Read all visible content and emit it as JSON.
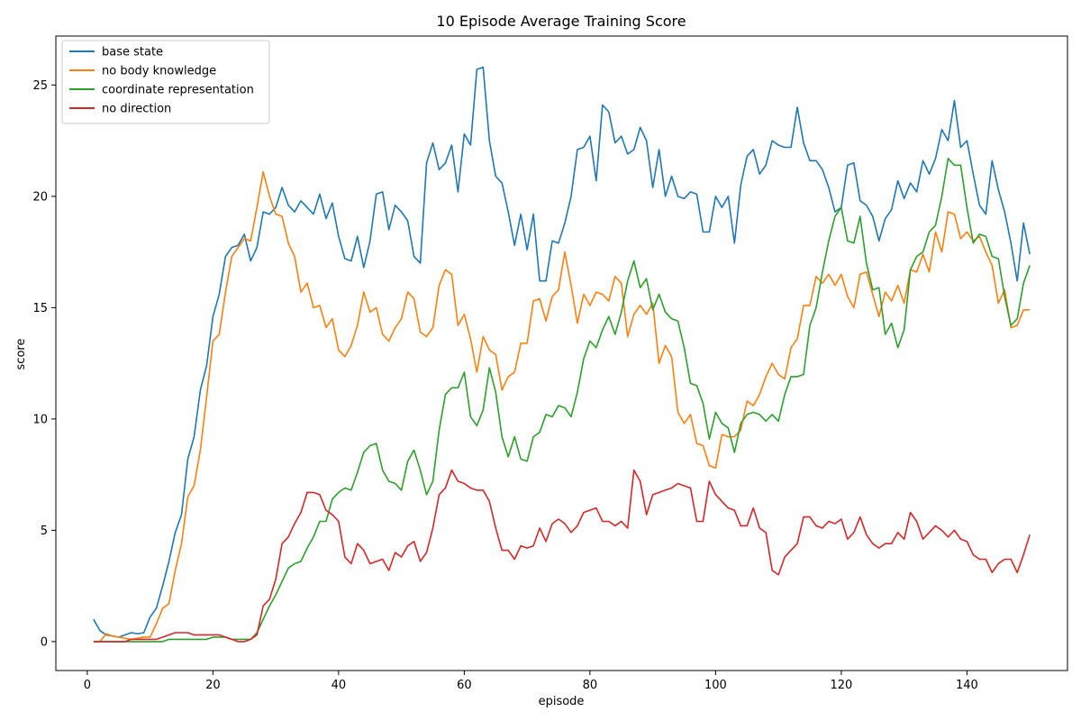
{
  "chart_data": {
    "type": "line",
    "title": "10 Episode Average Training Score",
    "xlabel": "episode",
    "ylabel": "score",
    "xlim": [
      -5,
      156
    ],
    "ylim": [
      -1.3,
      27.2
    ],
    "xticks": [
      0,
      20,
      40,
      60,
      80,
      100,
      120,
      140
    ],
    "yticks": [
      0,
      5,
      10,
      15,
      20,
      25
    ],
    "grid": false,
    "legend_position": "top-left",
    "x_start": 1,
    "x_step": 1,
    "series": [
      {
        "name": "base state",
        "color": "#1f77b4",
        "values": [
          1.0,
          0.5,
          0.3,
          0.25,
          0.2,
          0.3,
          0.4,
          0.35,
          0.4,
          1.1,
          1.5,
          2.5,
          3.6,
          4.9,
          5.7,
          8.2,
          9.2,
          11.3,
          12.4,
          14.6,
          15.6,
          17.3,
          17.7,
          17.8,
          18.3,
          17.1,
          17.7,
          19.3,
          19.2,
          19.5,
          20.4,
          19.6,
          19.3,
          19.8,
          19.5,
          19.2,
          20.1,
          19.0,
          19.7,
          18.2,
          17.2,
          17.1,
          18.2,
          16.8,
          18.0,
          20.1,
          20.2,
          18.5,
          19.6,
          19.3,
          18.9,
          17.3,
          17.0,
          21.5,
          22.4,
          21.2,
          21.5,
          22.3,
          20.2,
          22.8,
          22.3,
          25.7,
          25.8,
          22.5,
          20.9,
          20.6,
          19.3,
          17.8,
          19.2,
          17.6,
          19.2,
          16.2,
          16.2,
          18.0,
          17.9,
          18.8,
          20.0,
          22.1,
          22.2,
          22.7,
          20.7,
          24.1,
          23.8,
          22.4,
          22.7,
          21.9,
          22.1,
          23.1,
          22.5,
          20.4,
          22.1,
          20.0,
          20.9,
          20.0,
          19.9,
          20.2,
          20.1,
          18.4,
          18.4,
          20.0,
          19.5,
          20.0,
          17.9,
          20.5,
          21.8,
          22.1,
          21.0,
          21.4,
          22.5,
          22.3,
          22.2,
          22.2,
          24.0,
          22.4,
          21.6,
          21.6,
          21.2,
          20.4,
          19.3,
          19.5,
          21.4,
          21.5,
          19.8,
          19.6,
          19.1,
          18.0,
          19.0,
          19.4,
          20.7,
          19.9,
          20.6,
          20.2,
          21.6,
          21.0,
          21.7,
          23.0,
          22.5,
          24.3,
          22.2,
          22.5,
          21.0,
          19.6,
          19.2,
          21.6,
          20.3,
          19.3,
          17.9,
          16.2,
          18.8,
          17.4
        ]
      },
      {
        "name": "no body knowledge",
        "color": "#ff7f0e",
        "values": [
          0.0,
          0.0,
          0.35,
          0.25,
          0.2,
          0.15,
          0.1,
          0.15,
          0.2,
          0.2,
          0.8,
          1.5,
          1.7,
          3.2,
          4.4,
          6.5,
          7.0,
          8.6,
          11.0,
          13.5,
          13.8,
          15.7,
          17.3,
          17.7,
          18.1,
          18.0,
          19.5,
          21.1,
          20.0,
          19.2,
          19.1,
          17.9,
          17.3,
          15.7,
          16.1,
          15.0,
          15.1,
          14.1,
          14.5,
          13.1,
          12.8,
          13.3,
          14.2,
          15.7,
          14.8,
          15.0,
          13.8,
          13.5,
          14.1,
          14.5,
          15.7,
          15.4,
          13.9,
          13.7,
          14.1,
          16.0,
          16.7,
          16.5,
          14.2,
          14.7,
          13.6,
          12.1,
          13.7,
          13.1,
          12.9,
          11.3,
          11.9,
          12.1,
          13.4,
          13.4,
          15.3,
          15.4,
          14.4,
          15.5,
          15.8,
          17.5,
          16.0,
          14.3,
          15.6,
          15.1,
          15.7,
          15.6,
          15.3,
          16.4,
          16.1,
          13.7,
          14.7,
          15.1,
          14.7,
          15.2,
          12.5,
          13.3,
          12.8,
          10.3,
          9.8,
          10.2,
          8.9,
          8.8,
          7.9,
          7.8,
          9.3,
          9.2,
          9.2,
          9.5,
          10.8,
          10.6,
          11.1,
          11.9,
          12.5,
          12.0,
          11.8,
          13.2,
          13.6,
          15.1,
          15.1,
          16.4,
          16.1,
          16.5,
          16.0,
          16.5,
          15.5,
          15.0,
          16.5,
          16.6,
          15.6,
          14.6,
          15.7,
          15.3,
          16.0,
          15.2,
          16.7,
          16.6,
          17.4,
          16.6,
          18.4,
          17.5,
          19.3,
          19.2,
          18.1,
          18.4,
          18.0,
          18.2,
          17.5,
          16.9,
          15.2,
          15.8,
          14.1,
          14.2,
          14.9,
          14.9
        ]
      },
      {
        "name": "coordinate representation",
        "color": "#2ca02c",
        "values": [
          0.0,
          0.0,
          0.0,
          0.0,
          0.0,
          0.0,
          0.0,
          0.0,
          0.0,
          0.0,
          0.0,
          0.0,
          0.1,
          0.1,
          0.1,
          0.1,
          0.1,
          0.1,
          0.1,
          0.2,
          0.2,
          0.2,
          0.1,
          0.1,
          0.1,
          0.1,
          0.4,
          1.0,
          1.6,
          2.1,
          2.7,
          3.3,
          3.5,
          3.6,
          4.2,
          4.7,
          5.4,
          5.4,
          6.4,
          6.7,
          6.9,
          6.8,
          7.6,
          8.5,
          8.8,
          8.9,
          7.7,
          7.2,
          7.1,
          6.8,
          8.1,
          8.6,
          7.7,
          6.6,
          7.2,
          9.5,
          11.1,
          11.4,
          11.4,
          12.1,
          10.1,
          9.7,
          10.4,
          12.3,
          11.2,
          9.2,
          8.3,
          9.2,
          8.2,
          8.1,
          9.2,
          9.4,
          10.2,
          10.1,
          10.6,
          10.5,
          10.1,
          11.2,
          12.7,
          13.5,
          13.2,
          14.0,
          14.6,
          13.8,
          14.8,
          16.2,
          17.1,
          15.9,
          16.3,
          14.9,
          15.6,
          14.8,
          14.5,
          14.4,
          13.2,
          11.6,
          11.5,
          10.7,
          9.1,
          10.3,
          9.8,
          9.6,
          8.5,
          9.8,
          10.2,
          10.3,
          10.2,
          9.9,
          10.2,
          9.9,
          11.1,
          11.9,
          11.9,
          12.0,
          14.2,
          15.0,
          16.6,
          18.0,
          19.1,
          19.5,
          18.0,
          17.9,
          19.1,
          17.0,
          15.8,
          15.9,
          13.8,
          14.3,
          13.2,
          14.0,
          16.7,
          17.3,
          17.5,
          18.4,
          18.7,
          20.0,
          21.7,
          21.4,
          21.4,
          19.5,
          17.9,
          18.3,
          18.2,
          17.3,
          17.2,
          15.5,
          14.2,
          14.5,
          16.1,
          16.9
        ]
      },
      {
        "name": "no direction",
        "color": "#d62728",
        "values": [
          0.0,
          0.0,
          0.0,
          0.0,
          0.0,
          0.0,
          0.1,
          0.1,
          0.1,
          0.1,
          0.1,
          0.2,
          0.3,
          0.4,
          0.4,
          0.4,
          0.3,
          0.3,
          0.3,
          0.3,
          0.3,
          0.2,
          0.1,
          0.0,
          0.0,
          0.1,
          0.3,
          1.6,
          1.9,
          2.8,
          4.4,
          4.7,
          5.3,
          5.8,
          6.7,
          6.7,
          6.6,
          5.9,
          5.7,
          5.4,
          3.8,
          3.5,
          4.4,
          4.1,
          3.5,
          3.6,
          3.7,
          3.2,
          4.0,
          3.8,
          4.3,
          4.5,
          3.6,
          4.0,
          5.1,
          6.6,
          6.9,
          7.7,
          7.2,
          7.1,
          6.9,
          6.8,
          6.8,
          6.3,
          5.1,
          4.1,
          4.1,
          3.7,
          4.3,
          4.2,
          4.3,
          5.1,
          4.5,
          5.3,
          5.5,
          5.3,
          4.9,
          5.2,
          5.8,
          5.9,
          6.0,
          5.4,
          5.4,
          5.2,
          5.4,
          5.1,
          7.7,
          7.2,
          5.7,
          6.6,
          6.7,
          6.8,
          6.9,
          7.1,
          7.0,
          6.9,
          5.4,
          5.4,
          7.2,
          6.6,
          6.3,
          6.0,
          5.9,
          5.2,
          5.2,
          6.0,
          5.1,
          4.9,
          3.2,
          3.0,
          3.8,
          4.1,
          4.4,
          5.6,
          5.6,
          5.2,
          5.1,
          5.4,
          5.3,
          5.5,
          4.6,
          4.9,
          5.6,
          4.8,
          4.4,
          4.2,
          4.4,
          4.4,
          4.9,
          4.6,
          5.8,
          5.4,
          4.6,
          4.9,
          5.2,
          5.0,
          4.7,
          5.0,
          4.6,
          4.5,
          3.9,
          3.7,
          3.7,
          3.1,
          3.5,
          3.7,
          3.7,
          3.1,
          3.9,
          4.8
        ]
      }
    ]
  }
}
